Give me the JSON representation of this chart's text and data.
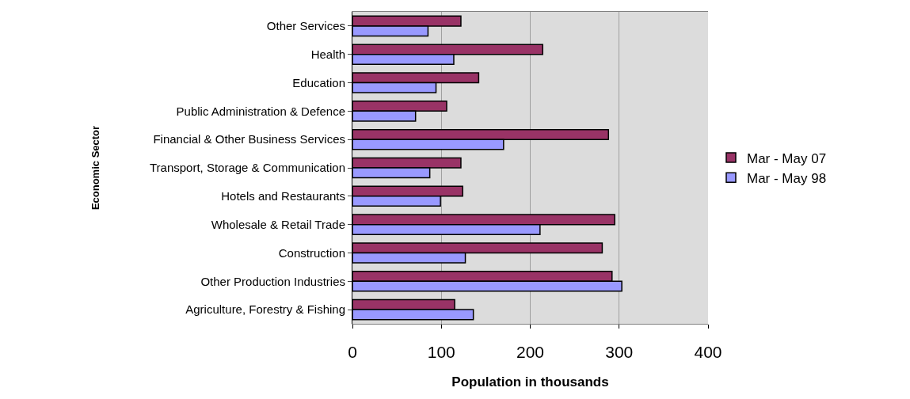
{
  "chart_data": {
    "type": "bar",
    "orientation": "horizontal",
    "categories": [
      "Other Services",
      "Health",
      "Education",
      "Public Administration & Defence",
      "Financial & Other Business Services",
      "Transport, Storage & Communication",
      "Hotels and Restaurants",
      "Wholesale & Retail Trade",
      "Construction",
      "Other Production Industries",
      "Agriculture, Forestry & Fishing"
    ],
    "series": [
      {
        "name": "Mar - May 07",
        "color": "#993366",
        "values": [
          122,
          214,
          142,
          106,
          288,
          122,
          124,
          295,
          281,
          292,
          115
        ]
      },
      {
        "name": "Mar - May 98",
        "color": "#9999ff",
        "values": [
          85,
          114,
          94,
          71,
          170,
          87,
          99,
          211,
          127,
          303,
          136
        ]
      }
    ],
    "xlabel": "Population in thousands",
    "ylabel": "Economic Sector",
    "xlim": [
      0,
      400
    ],
    "xticks": [
      0,
      100,
      200,
      300,
      400
    ],
    "grid": "x",
    "legend": "right"
  }
}
